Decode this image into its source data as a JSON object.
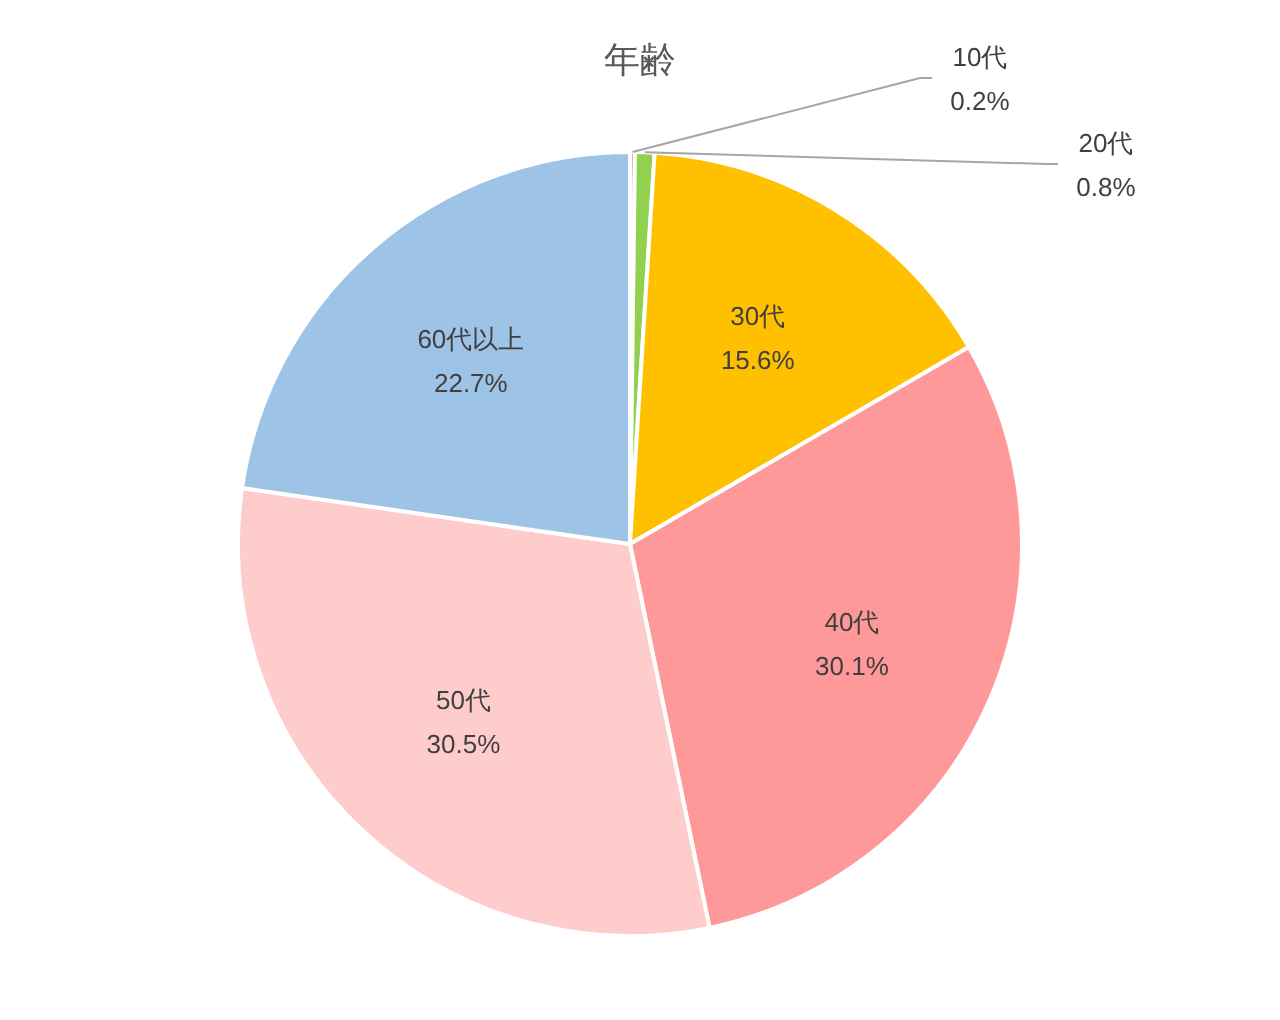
{
  "chart_data": {
    "type": "pie",
    "title": "年齢",
    "categories": [
      "10代",
      "20代",
      "30代",
      "40代",
      "50代",
      "60代以上"
    ],
    "values": [
      0.2,
      0.8,
      15.6,
      30.1,
      30.5,
      22.7
    ],
    "colors": [
      "#a5a5a5",
      "#92d050",
      "#ffc000",
      "#ff9999",
      "#ffcccc",
      "#9dc3e6"
    ],
    "value_labels": [
      "0.2%",
      "0.8%",
      "15.6%",
      "30.1%",
      "30.5%",
      "22.7%"
    ]
  }
}
